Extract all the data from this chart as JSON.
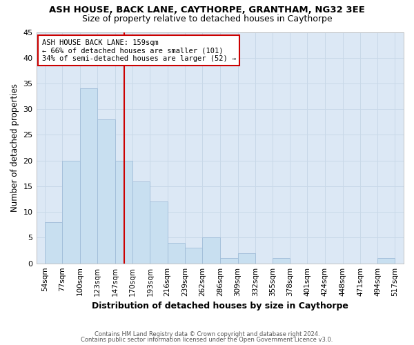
{
  "title": "ASH HOUSE, BACK LANE, CAYTHORPE, GRANTHAM, NG32 3EE",
  "subtitle": "Size of property relative to detached houses in Caythorpe",
  "xlabel": "Distribution of detached houses by size in Caythorpe",
  "ylabel": "Number of detached properties",
  "bar_edges": [
    54,
    77,
    100,
    123,
    147,
    170,
    193,
    216,
    239,
    262,
    286,
    309,
    332,
    355,
    378,
    401,
    424,
    448,
    471,
    494,
    517
  ],
  "bar_heights": [
    8,
    20,
    34,
    28,
    20,
    16,
    12,
    4,
    3,
    5,
    1,
    2,
    0,
    1,
    0,
    0,
    0,
    0,
    0,
    1
  ],
  "bar_color": "#c8dff0",
  "bar_edgecolor": "#a0bcd8",
  "vline_x": 159,
  "vline_color": "#cc0000",
  "annotation_title": "ASH HOUSE BACK LANE: 159sqm",
  "annotation_line1": "← 66% of detached houses are smaller (101)",
  "annotation_line2": "34% of semi-detached houses are larger (52) →",
  "annotation_box_color": "#ffffff",
  "annotation_box_edgecolor": "#cc0000",
  "tick_labels": [
    "54sqm",
    "77sqm",
    "100sqm",
    "123sqm",
    "147sqm",
    "170sqm",
    "193sqm",
    "216sqm",
    "239sqm",
    "262sqm",
    "286sqm",
    "309sqm",
    "332sqm",
    "355sqm",
    "378sqm",
    "401sqm",
    "424sqm",
    "448sqm",
    "471sqm",
    "494sqm",
    "517sqm"
  ],
  "ylim": [
    0,
    45
  ],
  "yticks": [
    0,
    5,
    10,
    15,
    20,
    25,
    30,
    35,
    40,
    45
  ],
  "grid_color": "#c8d8e8",
  "plot_bg_color": "#dce8f5",
  "fig_bg_color": "#ffffff",
  "footer_line1": "Contains HM Land Registry data © Crown copyright and database right 2024.",
  "footer_line2": "Contains public sector information licensed under the Open Government Licence v3.0."
}
